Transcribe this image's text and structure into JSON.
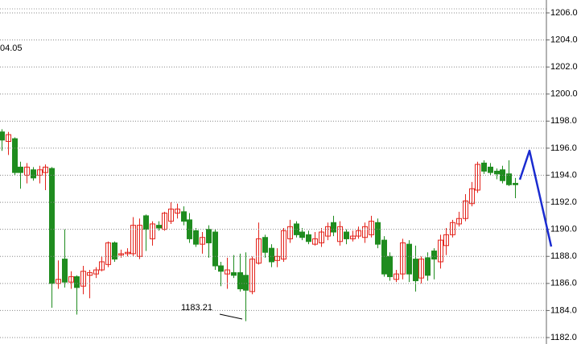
{
  "chart_data": {
    "type": "candlestick",
    "up_color": "#e3231b",
    "down_color": "#1f8c1f",
    "grid": true,
    "open": [
      1197.2,
      1196.5,
      1196.7,
      1194.6,
      1194.0,
      1194.4,
      1194.0,
      1194.2,
      1194.5,
      1186.0,
      1187.8,
      1186.1,
      1186.5,
      1185.8,
      1186.6,
      1186.7,
      1187.0,
      1187.4,
      1189.0,
      1188.1,
      1188.2,
      1188.2,
      1188.0,
      1191.0,
      1189.3,
      1190.3,
      1190.0,
      1190.6,
      1191.2,
      1191.3,
      1190.7,
      1189.9,
      1188.9,
      1190.0,
      1189.8,
      1187.3,
      1186.7,
      1186.8,
      1186.8,
      1186.6,
      1185.4,
      1187.5,
      1189.4,
      1188.6,
      1187.7,
      1187.8,
      1189.3,
      1190.4,
      1189.8,
      1189.6,
      1188.9,
      1189.0,
      1189.5,
      1190.5,
      1189.1,
      1189.8,
      1189.3,
      1189.5,
      1189.4,
      1189.6,
      1190.5,
      1189.2,
      1188.0,
      1186.3,
      1186.7,
      1188.9,
      1187.8,
      1186.4,
      1187.9,
      1188.4,
      1187.6,
      1188.8,
      1189.6,
      1190.4,
      1190.8,
      1191.9,
      1192.9,
      1194.9,
      1194.6,
      1194.3,
      1194.4,
      1194.1,
      1193.4
    ],
    "high": [
      1197.4,
      1197.2,
      1196.8,
      1195.0,
      1194.9,
      1194.6,
      1194.7,
      1194.8,
      1194.6,
      1187.7,
      1190.0,
      1186.9,
      1186.6,
      1187.3,
      1187.0,
      1187.2,
      1188.0,
      1189.1,
      1189.1,
      1188.5,
      1188.6,
      1190.9,
      1190.8,
      1191.1,
      1190.6,
      1190.6,
      1191.3,
      1192.0,
      1191.9,
      1191.7,
      1191.2,
      1190.1,
      1189.8,
      1190.3,
      1190.0,
      1187.6,
      1187.9,
      1188.1,
      1188.2,
      1188.3,
      1188.0,
      1190.5,
      1189.6,
      1188.9,
      1188.6,
      1190.1,
      1190.7,
      1190.6,
      1190.1,
      1189.9,
      1189.8,
      1190.1,
      1190.5,
      1191.0,
      1190.6,
      1190.0,
      1189.9,
      1190.2,
      1190.5,
      1191.0,
      1190.8,
      1189.5,
      1188.3,
      1187.0,
      1189.3,
      1189.2,
      1188.8,
      1188.0,
      1188.3,
      1188.6,
      1189.6,
      1190.1,
      1190.7,
      1191.3,
      1192.6,
      1193.5,
      1195.0,
      1195.1,
      1194.9,
      1194.5,
      1194.7,
      1195.1,
      1193.8
    ],
    "low": [
      1195.8,
      1195.5,
      1194.0,
      1193.0,
      1193.4,
      1193.6,
      1193.4,
      1192.9,
      1184.2,
      1185.6,
      1185.7,
      1185.6,
      1183.7,
      1185.2,
      1184.9,
      1186.4,
      1186.9,
      1187.2,
      1187.6,
      1187.9,
      1188.0,
      1188.0,
      1187.8,
      1188.4,
      1188.8,
      1189.9,
      1189.9,
      1190.4,
      1190.8,
      1190.3,
      1189.0,
      1188.7,
      1188.2,
      1187.9,
      1187.0,
      1185.8,
      1185.6,
      1186.4,
      1185.4,
      1183.21,
      1185.2,
      1187.4,
      1187.9,
      1187.2,
      1187.2,
      1187.6,
      1189.0,
      1189.4,
      1189.2,
      1188.9,
      1188.8,
      1188.7,
      1189.2,
      1189.5,
      1188.8,
      1188.9,
      1189.1,
      1189.3,
      1189.0,
      1189.4,
      1188.6,
      1186.5,
      1186.2,
      1186.1,
      1186.3,
      1186.1,
      1185.4,
      1186.0,
      1186.2,
      1186.3,
      1187.1,
      1188.1,
      1189.4,
      1190.2,
      1190.6,
      1191.7,
      1192.7,
      1194.1,
      1194.0,
      1193.7,
      1193.4,
      1193.2,
      1192.3
    ],
    "close": [
      1196.6,
      1197.0,
      1194.2,
      1194.2,
      1194.6,
      1193.8,
      1194.4,
      1194.6,
      1186.0,
      1186.3,
      1186.1,
      1186.5,
      1185.7,
      1186.9,
      1186.8,
      1187.0,
      1187.6,
      1189.0,
      1187.8,
      1188.2,
      1188.3,
      1190.3,
      1190.3,
      1190.0,
      1190.4,
      1190.1,
      1191.2,
      1191.5,
      1191.5,
      1190.6,
      1189.3,
      1188.9,
      1189.4,
      1189.0,
      1187.3,
      1186.9,
      1187.0,
      1186.6,
      1185.6,
      1185.5,
      1187.8,
      1189.3,
      1188.3,
      1187.6,
      1188.0,
      1189.9,
      1190.2,
      1189.6,
      1189.4,
      1189.1,
      1189.3,
      1189.8,
      1190.2,
      1189.8,
      1190.2,
      1189.3,
      1189.5,
      1189.9,
      1190.2,
      1190.6,
      1188.9,
      1186.7,
      1186.5,
      1186.7,
      1189.0,
      1186.7,
      1186.2,
      1187.8,
      1186.6,
      1187.8,
      1189.2,
      1189.6,
      1190.5,
      1190.8,
      1192.1,
      1193.0,
      1194.8,
      1194.3,
      1194.2,
      1194.1,
      1193.6,
      1193.3,
      1193.3
    ],
    "ylim": [
      1182,
      1206
    ],
    "yticks": [
      {
        "value": 1182,
        "label": "1182.0"
      },
      {
        "value": 1184,
        "label": "1184.0"
      },
      {
        "value": 1186,
        "label": "1186.0"
      },
      {
        "value": 1188,
        "label": "1188.0"
      },
      {
        "value": 1190,
        "label": "1190.0"
      },
      {
        "value": 1192,
        "label": "1192.0"
      },
      {
        "value": 1194,
        "label": "1194.0"
      },
      {
        "value": 1196,
        "label": "1196.0"
      },
      {
        "value": 1198,
        "label": "1198.0"
      },
      {
        "value": 1200,
        "label": "1200.0"
      },
      {
        "value": 1202,
        "label": "1202.0"
      },
      {
        "value": 1204,
        "label": "1204.0"
      },
      {
        "value": 1206,
        "label": "1206.0"
      }
    ],
    "annotations": [
      "04.05",
      "1183.21"
    ]
  }
}
